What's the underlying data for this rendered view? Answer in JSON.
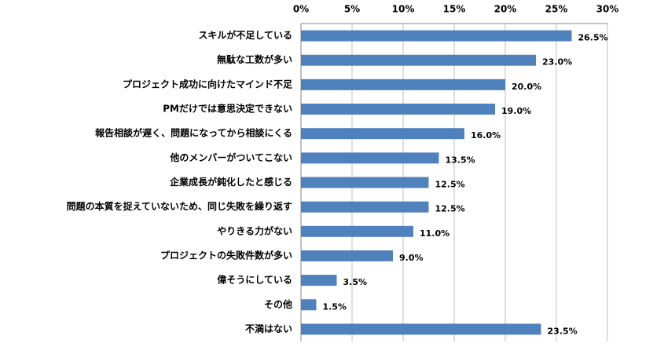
{
  "chart_data": {
    "type": "bar",
    "orientation": "horizontal",
    "categories": [
      "スキルが不足している",
      "無駄な工数が多い",
      "プロジェクト成功に向けたマインド不足",
      "PMだけでは意思決定できない",
      "報告相談が遅く、問題になってから相談にくる",
      "他のメンバーがついてこない",
      "企業成長が鈍化したと感じる",
      "問題の本質を捉えていないため、同じ失敗を繰り返す",
      "やりきる力がない",
      "プロジェクトの失敗件数が多い",
      "偉そうにしている",
      "その他",
      "不満はない"
    ],
    "values": [
      26.5,
      23.0,
      20.0,
      19.0,
      16.0,
      13.5,
      12.5,
      12.5,
      11.0,
      9.0,
      3.5,
      1.5,
      23.5
    ],
    "value_labels": [
      "26.5%",
      "23.0%",
      "20.0%",
      "19.0%",
      "16.0%",
      "13.5%",
      "12.5%",
      "12.5%",
      "11.0%",
      "9.0%",
      "3.5%",
      "1.5%",
      "23.5%"
    ],
    "color": "#4f81bd",
    "xlim": [
      0,
      30
    ],
    "xticks": [
      {
        "value": 0,
        "label": "0%"
      },
      {
        "value": 5,
        "label": "5%"
      },
      {
        "value": 10,
        "label": "10%"
      },
      {
        "value": 15,
        "label": "15%"
      },
      {
        "value": 20,
        "label": "20%"
      },
      {
        "value": 25,
        "label": "25%"
      },
      {
        "value": 30,
        "label": "30%"
      }
    ],
    "grid": true
  }
}
